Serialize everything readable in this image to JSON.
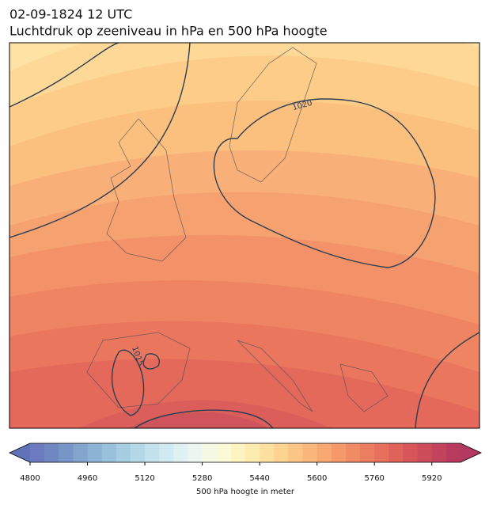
{
  "header": {
    "date": "02-09-1824 12 UTC",
    "title": "Luchtdruk op zeeniveau in hPa en 500 hPa hoogte"
  },
  "contour_labels": [
    "1020",
    "1015"
  ],
  "colorbar": {
    "label": "500 hPa hoogte in meter",
    "lim": [
      4800,
      6000
    ],
    "ticks": [
      4800,
      4960,
      5120,
      5280,
      5440,
      5600,
      5760,
      5920
    ],
    "colors": [
      "#6b7bbd",
      "#7088c2",
      "#7795c7",
      "#82a4cd",
      "#8db3d4",
      "#9ac1db",
      "#a7cde2",
      "#b5d8e8",
      "#c3e2ed",
      "#d1eaf1",
      "#dff1f3",
      "#ebf6ef",
      "#f5f9e4",
      "#fcfad6",
      "#fef4c2",
      "#feebb0",
      "#fde0a0",
      "#fdd392",
      "#fcc585",
      "#fbb77b",
      "#f8a873",
      "#f5996b",
      "#f18b65",
      "#ec7d60",
      "#e6705c",
      "#df635a",
      "#d65659",
      "#cc4c5a",
      "#c2435c",
      "#b83b5e"
    ],
    "under_color": "#6272b8",
    "over_color": "#b23a62"
  }
}
